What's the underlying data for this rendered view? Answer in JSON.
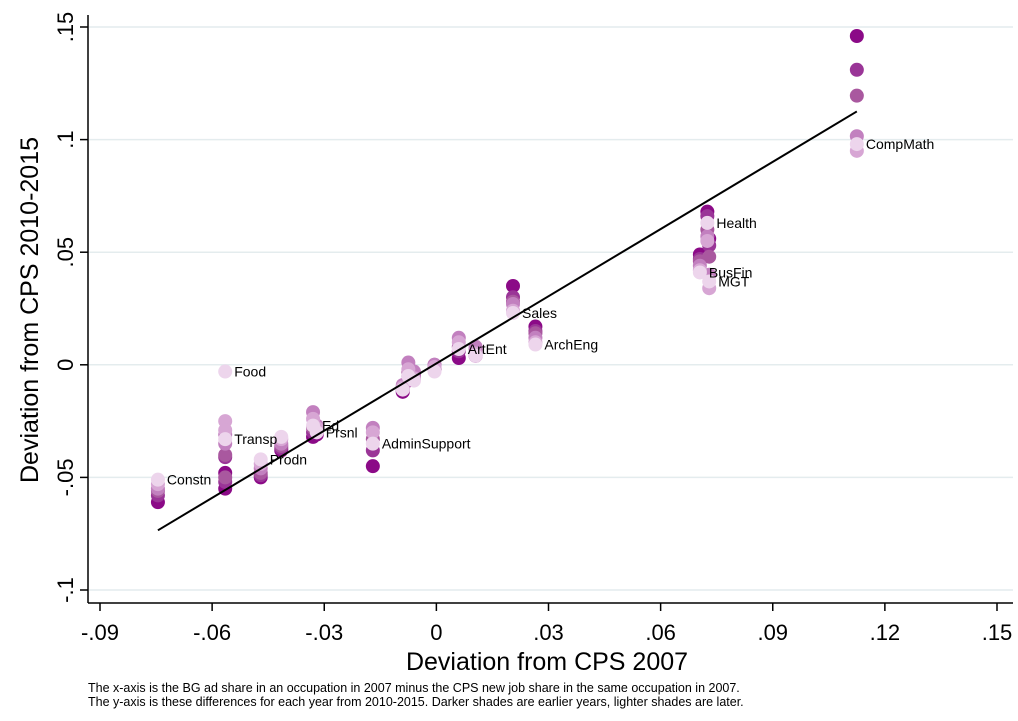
{
  "chart_data": {
    "type": "scatter",
    "xlabel": "Deviation from CPS 2007",
    "ylabel": "Deviation from CPS 2010-2015",
    "xlim": [
      -0.09,
      0.15
    ],
    "ylim": [
      -0.1,
      0.15
    ],
    "x_ticks": [
      -0.09,
      -0.06,
      -0.03,
      0,
      0.03,
      0.06,
      0.09,
      0.12,
      0.15
    ],
    "x_tick_labels": [
      "-.09",
      "-.06",
      "-.03",
      "0",
      ".03",
      ".06",
      ".09",
      ".12",
      ".15"
    ],
    "y_ticks": [
      -0.1,
      -0.05,
      0,
      0.05,
      0.1,
      0.15
    ],
    "y_tick_labels": [
      "-.1",
      "-.05",
      "0",
      ".05",
      ".1",
      ".15"
    ],
    "grid": "horizontal",
    "year_colors": [
      "#8b0a87",
      "#9a3597",
      "#a9589f",
      "#c280bf",
      "#d7a6d4",
      "#edd5ec"
    ],
    "fit_line": {
      "x": [
        -0.0745,
        0.1125
      ],
      "y": [
        -0.0735,
        0.1125
      ]
    },
    "occupations": [
      {
        "label": "CompMath",
        "x": 0.1125,
        "y": [
          0.146,
          0.131,
          0.1195,
          0.1015,
          0.095,
          0.098
        ]
      },
      {
        "label": "Health",
        "x": 0.0725,
        "y": [
          0.068,
          0.066,
          0.06,
          0.057,
          0.055,
          0.063
        ]
      },
      {
        "label": "BusFin",
        "x": 0.0705,
        "y": [
          0.049,
          0.047,
          0.046,
          0.044,
          0.042,
          0.041
        ]
      },
      {
        "label": "MGT",
        "x": 0.073,
        "y": [
          0.056,
          0.053,
          0.048,
          0.04,
          0.034,
          0.037
        ]
      },
      {
        "label": "Sales",
        "x": 0.0205,
        "y": [
          0.035,
          0.03,
          0.028,
          0.027,
          0.024,
          0.023
        ]
      },
      {
        "label": "ArchEng",
        "x": 0.0265,
        "y": [
          0.017,
          0.015,
          0.014,
          0.012,
          0.01,
          0.009
        ]
      },
      {
        "label": "ArtEnt",
        "x": 0.006,
        "y": [
          0.003,
          0.006,
          0.008,
          0.012,
          0.01,
          0.007
        ]
      },
      {
        "label": "",
        "x": 0.0105,
        "y": [
          0.004,
          0.005,
          0.007,
          0.008,
          0.005,
          0.004
        ]
      },
      {
        "label": "",
        "x": -0.0005,
        "y": [
          -0.002,
          -0.001,
          0.0,
          0.0,
          -0.001,
          -0.003
        ]
      },
      {
        "label": "",
        "x": -0.006,
        "y": [
          -0.006,
          -0.005,
          -0.004,
          -0.003,
          -0.006,
          -0.007
        ]
      },
      {
        "label": "",
        "x": -0.0075,
        "y": [
          -0.007,
          -0.005,
          -0.003,
          0.001,
          -0.002,
          -0.005
        ]
      },
      {
        "label": "",
        "x": -0.009,
        "y": [
          -0.012,
          -0.011,
          -0.01,
          -0.009,
          -0.01,
          -0.011
        ]
      },
      {
        "label": "AdminSupport",
        "x": -0.017,
        "y": [
          -0.045,
          -0.038,
          -0.033,
          -0.028,
          -0.03,
          -0.035
        ]
      },
      {
        "label": "Ed",
        "x": -0.033,
        "y": [
          -0.032,
          -0.03,
          -0.028,
          -0.021,
          -0.024,
          -0.027
        ]
      },
      {
        "label": "Prsnl",
        "x": -0.032,
        "y": [
          -0.031,
          -0.03,
          -0.029,
          -0.027,
          -0.028,
          -0.03
        ]
      },
      {
        "label": "Prodn",
        "x": -0.047,
        "y": [
          -0.05,
          -0.049,
          -0.048,
          -0.046,
          -0.044,
          -0.042
        ]
      },
      {
        "label": "",
        "x": -0.0415,
        "y": [
          -0.038,
          -0.037,
          -0.036,
          -0.035,
          -0.033,
          -0.032
        ]
      },
      {
        "label": "Transp",
        "x": -0.0565,
        "y": [
          -0.048,
          -0.041,
          -0.04,
          -0.031,
          -0.025,
          -0.033
        ]
      },
      {
        "label": "Food",
        "x": -0.0565,
        "y": [
          -0.055,
          -0.052,
          -0.05,
          -0.035,
          -0.029,
          -0.003
        ]
      },
      {
        "label": "Constn",
        "x": -0.0745,
        "y": [
          -0.061,
          -0.058,
          -0.056,
          -0.055,
          -0.053,
          -0.051
        ]
      }
    ]
  },
  "notes": [
    "The x-axis is the BG ad share in an occupation in 2007 minus the CPS new job share in the same occupation in 2007.",
    "The y-axis is these differences for each year from 2010-2015. Darker shades are earlier years, lighter shades are later."
  ]
}
